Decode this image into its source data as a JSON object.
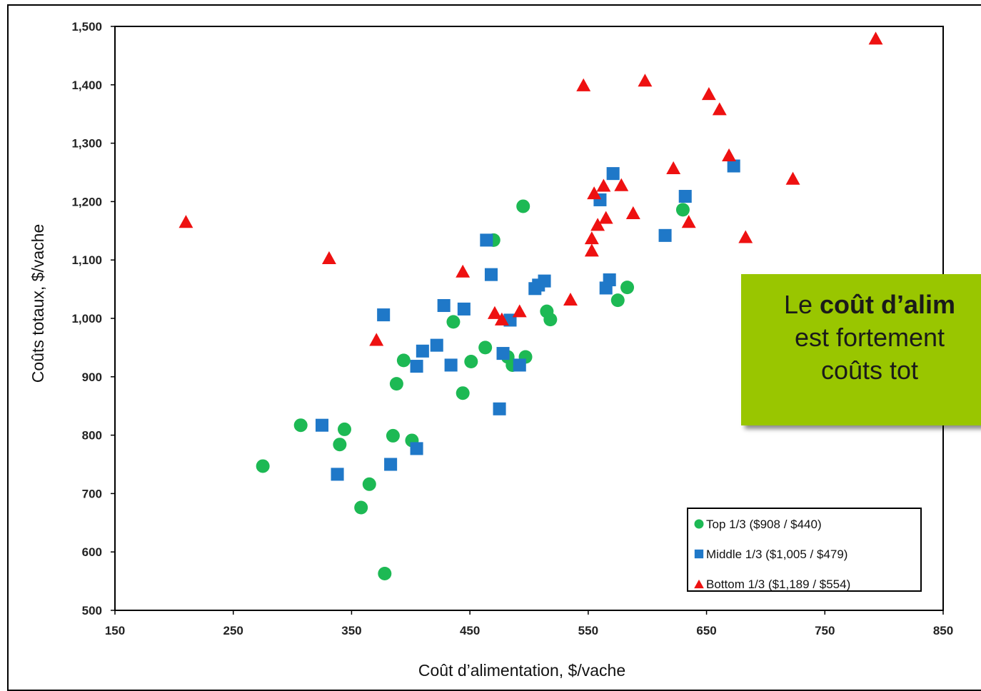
{
  "chart_data": {
    "type": "scatter",
    "title": "",
    "xlabel": "Coût d’alimentation, $/vache",
    "ylabel": "Coûts totaux, $/vache",
    "xlim": [
      150,
      850
    ],
    "ylim": [
      500,
      1500
    ],
    "xticks": [
      150,
      250,
      350,
      450,
      550,
      650,
      750,
      850
    ],
    "yticks": [
      500,
      600,
      700,
      800,
      900,
      1000,
      1100,
      1200,
      1300,
      1400,
      1500
    ],
    "xtick_labels": [
      "150",
      "250",
      "350",
      "450",
      "550",
      "650",
      "750",
      "850"
    ],
    "ytick_labels": [
      "500",
      "600",
      "700",
      "800",
      "900",
      "1,000",
      "1,100",
      "1,200",
      "1,300",
      "1,400",
      "1,500"
    ],
    "grid": false,
    "legend_position": "bottom-right",
    "series": [
      {
        "name": "Top 1/3 ($908 / $440)",
        "marker": "circle",
        "color": "#1db954",
        "points": [
          [
            275,
            747
          ],
          [
            307,
            817
          ],
          [
            340,
            784
          ],
          [
            344,
            810
          ],
          [
            358,
            676
          ],
          [
            365,
            716
          ],
          [
            378,
            563
          ],
          [
            385,
            799
          ],
          [
            388,
            888
          ],
          [
            394,
            928
          ],
          [
            401,
            791
          ],
          [
            436,
            994
          ],
          [
            444,
            872
          ],
          [
            451,
            926
          ],
          [
            463,
            950
          ],
          [
            470,
            1134
          ],
          [
            482,
            934
          ],
          [
            486,
            920
          ],
          [
            495,
            1192
          ],
          [
            497,
            934
          ],
          [
            515,
            1012
          ],
          [
            518,
            998
          ],
          [
            575,
            1031
          ],
          [
            583,
            1053
          ],
          [
            630,
            1186
          ]
        ]
      },
      {
        "name": "Middle 1/3 ($1,005 / $479)",
        "marker": "square",
        "color": "#1f78c8",
        "points": [
          [
            325,
            817
          ],
          [
            338,
            733
          ],
          [
            377,
            1006
          ],
          [
            383,
            750
          ],
          [
            405,
            918
          ],
          [
            405,
            777
          ],
          [
            410,
            944
          ],
          [
            422,
            954
          ],
          [
            428,
            1022
          ],
          [
            434,
            920
          ],
          [
            445,
            1016
          ],
          [
            464,
            1134
          ],
          [
            468,
            1075
          ],
          [
            475,
            845
          ],
          [
            478,
            940
          ],
          [
            484,
            997
          ],
          [
            492,
            920
          ],
          [
            505,
            1051
          ],
          [
            508,
            1057
          ],
          [
            513,
            1064
          ],
          [
            560,
            1203
          ],
          [
            565,
            1052
          ],
          [
            568,
            1066
          ],
          [
            571,
            1248
          ],
          [
            615,
            1142
          ],
          [
            632,
            1209
          ],
          [
            673,
            1261
          ]
        ]
      },
      {
        "name": "Bottom 1/3 ($1,189 / $554)",
        "marker": "triangle",
        "color": "#ee1111",
        "points": [
          [
            210,
            1166
          ],
          [
            331,
            1104
          ],
          [
            371,
            964
          ],
          [
            444,
            1081
          ],
          [
            471,
            1010
          ],
          [
            477,
            999
          ],
          [
            492,
            1013
          ],
          [
            535,
            1033
          ],
          [
            546,
            1400
          ],
          [
            553,
            1138
          ],
          [
            553,
            1117
          ],
          [
            555,
            1215
          ],
          [
            558,
            1161
          ],
          [
            563,
            1228
          ],
          [
            565,
            1173
          ],
          [
            578,
            1229
          ],
          [
            588,
            1181
          ],
          [
            598,
            1408
          ],
          [
            622,
            1258
          ],
          [
            635,
            1166
          ],
          [
            652,
            1385
          ],
          [
            661,
            1359
          ],
          [
            669,
            1280
          ],
          [
            683,
            1140
          ],
          [
            723,
            1240
          ],
          [
            793,
            1480
          ]
        ]
      }
    ]
  },
  "callout": {
    "prefix": "Le ",
    "bold": "coût d’alim",
    "line2": "est fortement",
    "line3": "coûts tot"
  }
}
